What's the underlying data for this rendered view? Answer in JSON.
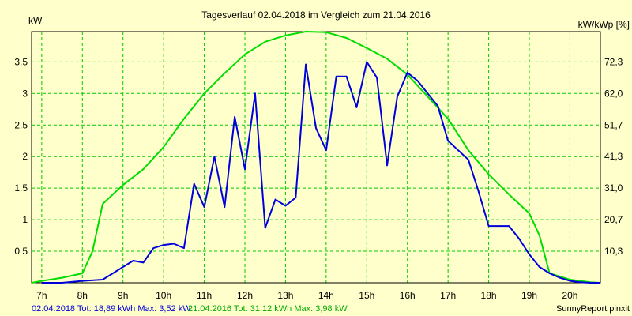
{
  "chart_data": {
    "type": "line",
    "title": "Tagesverlauf 02.04.2018 im Vergleich zum 21.04.2016",
    "ylabel_left": "kW",
    "ylabel_right": "kW/kWp [%]",
    "x_ticks": [
      "7h",
      "8h",
      "9h",
      "10h",
      "11h",
      "12h",
      "13h",
      "14h",
      "15h",
      "16h",
      "17h",
      "18h",
      "19h",
      "20h"
    ],
    "y_ticks_left": [
      "0.5",
      "1",
      "1.5",
      "2",
      "2.5",
      "3",
      "3.5"
    ],
    "y_ticks_right": [
      "10,3",
      "20,7",
      "31,0",
      "41,3",
      "51,7",
      "62,0",
      "72,3"
    ],
    "xlim": [
      6.75,
      20.75
    ],
    "ylim": [
      0,
      3.98
    ],
    "grid": true,
    "series": [
      {
        "name": "02.04.2018",
        "color": "#0000dd",
        "x": [
          7.0,
          7.5,
          8.0,
          8.5,
          8.75,
          9.0,
          9.25,
          9.5,
          9.75,
          10.0,
          10.25,
          10.5,
          10.75,
          11.0,
          11.25,
          11.5,
          11.75,
          12.0,
          12.25,
          12.5,
          12.75,
          13.0,
          13.25,
          13.5,
          13.75,
          14.0,
          14.25,
          14.5,
          14.75,
          15.0,
          15.25,
          15.5,
          15.75,
          16.0,
          16.25,
          16.5,
          16.75,
          17.0,
          17.25,
          17.5,
          17.75,
          18.0,
          18.25,
          18.5,
          18.75,
          19.0,
          19.25,
          19.5,
          19.75,
          20.0,
          20.25,
          20.5,
          20.75
        ],
        "y": [
          0,
          0,
          0.03,
          0.05,
          0.15,
          0.25,
          0.35,
          0.32,
          0.55,
          0.6,
          0.62,
          0.55,
          1.57,
          1.2,
          2.0,
          1.2,
          2.63,
          1.8,
          3.0,
          0.87,
          1.32,
          1.22,
          1.35,
          3.46,
          2.45,
          2.1,
          3.27,
          3.27,
          2.78,
          3.5,
          3.25,
          1.86,
          2.95,
          3.33,
          3.2,
          3.0,
          2.8,
          2.25,
          2.1,
          1.95,
          1.45,
          0.9,
          0.9,
          0.9,
          0.7,
          0.45,
          0.25,
          0.15,
          0.08,
          0.03,
          0.01,
          0,
          0
        ]
      },
      {
        "name": "21.04.2016",
        "color": "#00dd00",
        "x": [
          6.75,
          7.0,
          7.5,
          8.0,
          8.25,
          8.5,
          9.0,
          9.5,
          10.0,
          10.5,
          11.0,
          11.5,
          12.0,
          12.5,
          13.0,
          13.5,
          14.0,
          14.5,
          15.0,
          15.5,
          16.0,
          16.5,
          17.0,
          17.5,
          18.0,
          18.5,
          19.0,
          19.25,
          19.5,
          20.0,
          20.5,
          20.75
        ],
        "y": [
          0,
          0.03,
          0.08,
          0.15,
          0.5,
          1.25,
          1.55,
          1.8,
          2.15,
          2.6,
          3.0,
          3.32,
          3.62,
          3.82,
          3.92,
          3.98,
          3.97,
          3.88,
          3.72,
          3.55,
          3.3,
          2.95,
          2.6,
          2.1,
          1.72,
          1.4,
          1.1,
          0.75,
          0.15,
          0.05,
          0.01,
          0
        ]
      }
    ]
  },
  "footer": {
    "series1": "02.04.2018 Tot: 18,89 kWh Max: 3,52 kW",
    "series2": "21.04.2016 Tot: 31,12 kWh Max: 3,98 kW",
    "credit": "SunnyReport pinxit"
  },
  "colors": {
    "background": "#ffffcc",
    "grid": "#00cc00",
    "axis": "#000000"
  }
}
